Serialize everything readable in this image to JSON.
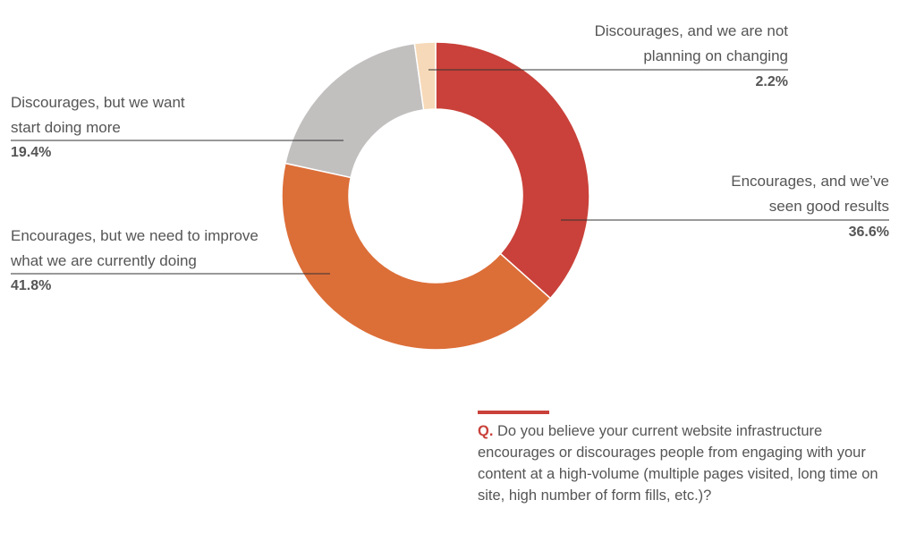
{
  "chart_data": {
    "type": "pie",
    "donut": true,
    "slices": [
      {
        "label_lines": [
          "Encourages, and we’ve",
          "seen good results"
        ],
        "value": 36.6,
        "pct_label": "36.6%",
        "color": "#c9413a"
      },
      {
        "label_lines": [
          "Encourages, but we need to improve",
          "what we are currently doing"
        ],
        "value": 41.8,
        "pct_label": "41.8%",
        "color": "#dc6e38"
      },
      {
        "label_lines": [
          "Discourages, but we want",
          "start doing more"
        ],
        "value": 19.4,
        "pct_label": "19.4%",
        "color": "#c2bfbf"
      },
      {
        "label_lines": [
          "Discourages, and we are not",
          "planning on changing"
        ],
        "value": 2.2,
        "pct_label": "2.2%",
        "color": "#f6d9b8"
      }
    ]
  },
  "question": {
    "marker": "Q.",
    "text": "Do you believe your current website infrastructure encourages or discourages people from engaging with your content at a high-volume (multiple pages visited, long time on site, high number of form fills, etc.)?",
    "accent_color": "#c9413a"
  }
}
